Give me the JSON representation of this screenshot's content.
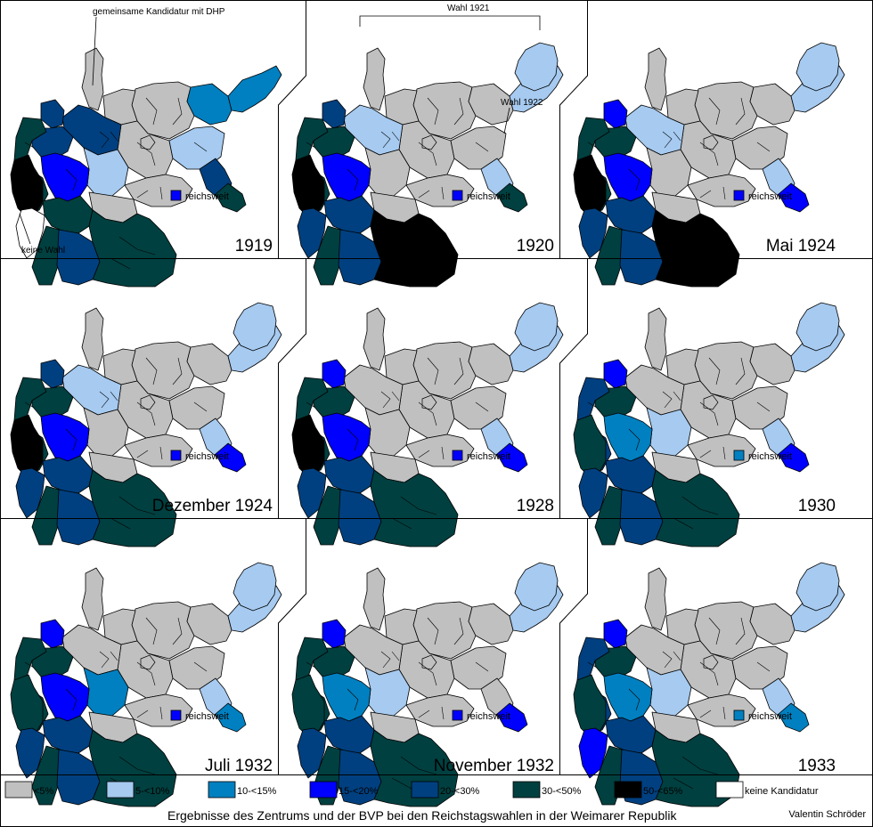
{
  "colors": {
    "c0": "#c0c0c0",
    "c5": "#a6caf0",
    "c10": "#0080c0",
    "c15": "#0000ff",
    "c20": "#004080",
    "c30": "#004040",
    "c50": "#000000",
    "none": "#ffffff"
  },
  "panels": [
    {
      "label": "1919",
      "nation": "c15",
      "regions": {
        "ep": "c10",
        "wp": "c10",
        "po": "c5",
        "pom": "c0",
        "sl": "c20",
        "os": "c30",
        "br": "c0",
        "me": "c0",
        "sh": "c0",
        "ha": "c20",
        "ol": "c20",
        "wf": "c20",
        "rh": "c30",
        "rs": "c50",
        "hn": "c15",
        "ct": "c5",
        "sx": "c0",
        "th": "c0",
        "he": "c30",
        "ba": "c30",
        "pf": "none",
        "wu": "c20",
        "by": "c30"
      }
    },
    {
      "label": "1920",
      "nation": "c15",
      "regions": {
        "ep": "c5",
        "wp": "c0",
        "po": "c0",
        "pom": "c0",
        "sl": "c5",
        "os": "c30",
        "br": "c0",
        "me": "c0",
        "sh": "c0",
        "ha": "c5",
        "ol": "c20",
        "wf": "c30",
        "rh": "c30",
        "rs": "c50",
        "hn": "c15",
        "ct": "c0",
        "sx": "c0",
        "th": "c0",
        "he": "c20",
        "ba": "c30",
        "pf": "c20",
        "wu": "c20",
        "by": "c50"
      }
    },
    {
      "label": "Mai 1924",
      "nation": "c15",
      "regions": {
        "ep": "c5",
        "wp": "c0",
        "po": "c0",
        "pom": "c0",
        "sl": "c5",
        "os": "c15",
        "br": "c0",
        "me": "c0",
        "sh": "c0",
        "ha": "c5",
        "ol": "c15",
        "wf": "c30",
        "rh": "c30",
        "rs": "c50",
        "hn": "c15",
        "ct": "c0",
        "sx": "c0",
        "th": "c0",
        "he": "c20",
        "ba": "c30",
        "pf": "c20",
        "wu": "c20",
        "by": "c50"
      }
    },
    {
      "label": "Dezember 1924",
      "nation": "c15",
      "regions": {
        "ep": "c5",
        "wp": "c0",
        "po": "c0",
        "pom": "c0",
        "sl": "c5",
        "os": "c15",
        "br": "c0",
        "me": "c0",
        "sh": "c0",
        "ha": "c5",
        "ol": "c20",
        "wf": "c30",
        "rh": "c30",
        "rs": "c50",
        "hn": "c15",
        "ct": "c0",
        "sx": "c0",
        "th": "c0",
        "he": "c20",
        "ba": "c30",
        "pf": "c20",
        "wu": "c20",
        "by": "c30"
      }
    },
    {
      "label": "1928",
      "nation": "c15",
      "regions": {
        "ep": "c5",
        "wp": "c0",
        "po": "c0",
        "pom": "c0",
        "sl": "c5",
        "os": "c15",
        "br": "c0",
        "me": "c0",
        "sh": "c0",
        "ha": "c0",
        "ol": "c15",
        "wf": "c30",
        "rh": "c30",
        "rs": "c50",
        "hn": "c15",
        "ct": "c0",
        "sx": "c0",
        "th": "c0",
        "he": "c20",
        "ba": "c30",
        "pf": "c20",
        "wu": "c20",
        "by": "c30"
      }
    },
    {
      "label": "1930",
      "nation": "c10",
      "regions": {
        "ep": "c5",
        "wp": "c0",
        "po": "c0",
        "pom": "c0",
        "sl": "c5",
        "os": "c15",
        "br": "c0",
        "me": "c0",
        "sh": "c0",
        "ha": "c0",
        "ol": "c15",
        "wf": "c30",
        "rh": "c20",
        "rs": "c30",
        "hn": "c10",
        "ct": "c5",
        "sx": "c0",
        "th": "c0",
        "he": "c20",
        "ba": "c30",
        "pf": "c20",
        "wu": "c20",
        "by": "c30"
      }
    },
    {
      "label": "Juli 1932",
      "nation": "c15",
      "regions": {
        "ep": "c5",
        "wp": "c0",
        "po": "c0",
        "pom": "c0",
        "sl": "c5",
        "os": "c10",
        "br": "c0",
        "me": "c0",
        "sh": "c0",
        "ha": "c0",
        "ol": "c15",
        "wf": "c30",
        "rh": "c30",
        "rs": "c30",
        "hn": "c15",
        "ct": "c10",
        "sx": "c0",
        "th": "c0",
        "he": "c20",
        "ba": "c30",
        "pf": "c20",
        "wu": "c20",
        "by": "c30"
      }
    },
    {
      "label": "November 1932",
      "nation": "c15",
      "regions": {
        "ep": "c5",
        "wp": "c0",
        "po": "c0",
        "pom": "c0",
        "sl": "c0",
        "os": "c15",
        "br": "c0",
        "me": "c0",
        "sh": "c0",
        "ha": "c0",
        "ol": "c15",
        "wf": "c30",
        "rh": "c30",
        "rs": "c30",
        "hn": "c10",
        "ct": "c5",
        "sx": "c0",
        "th": "c0",
        "he": "c20",
        "ba": "c30",
        "pf": "c20",
        "wu": "c20",
        "by": "c30"
      }
    },
    {
      "label": "1933",
      "nation": "c10",
      "regions": {
        "ep": "c5",
        "wp": "c0",
        "po": "c0",
        "pom": "c0",
        "sl": "c5",
        "os": "c10",
        "br": "c0",
        "me": "c0",
        "sh": "c0",
        "ha": "c0",
        "ol": "c15",
        "wf": "c30",
        "rh": "c20",
        "rs": "c30",
        "hn": "c10",
        "ct": "c5",
        "sx": "c0",
        "th": "c0",
        "he": "c20",
        "ba": "c30",
        "pf": "c15",
        "wu": "c20",
        "by": "c30"
      }
    }
  ],
  "nationwide_label": "reichsweit",
  "annotations": {
    "joint": "gemeinsame Kandidatur mit DHP",
    "no_vote": "keine Wahl",
    "vote_1921": "Wahl 1921",
    "vote_1922": "Wahl 1922"
  },
  "legend": [
    {
      "label": "<5%",
      "color": "c0"
    },
    {
      "label": "5-<10%",
      "color": "c5"
    },
    {
      "label": "10-<15%",
      "color": "c10"
    },
    {
      "label": "15-<20%",
      "color": "c15"
    },
    {
      "label": "20-<30%",
      "color": "c20"
    },
    {
      "label": "30-<50%",
      "color": "c30"
    },
    {
      "label": "50-<65%",
      "color": "c50"
    },
    {
      "label": "keine Kandidatur",
      "color": "none"
    }
  ],
  "caption": "Ergebnisse des Zentrums und der BVP bei den Reichstagswahlen in der Weimarer Republik",
  "author": "Valentin Schröder"
}
